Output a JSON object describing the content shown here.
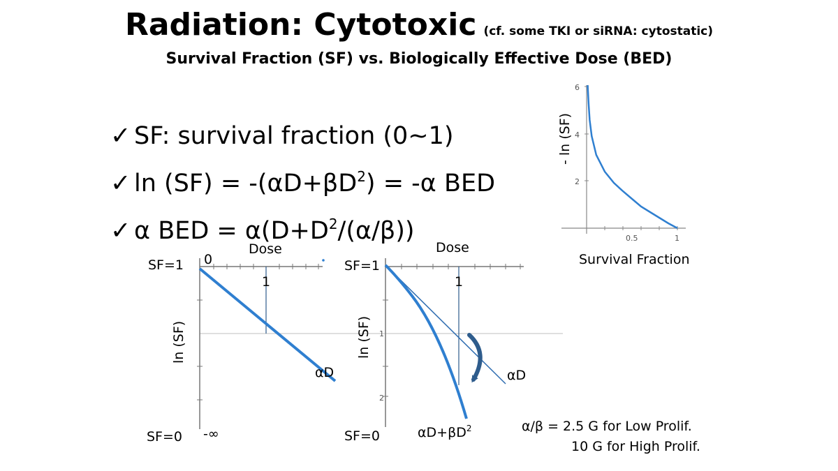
{
  "title": {
    "main": "Radiation: Cytotoxic",
    "note": "(cf. some TKI or siRNA: cytostatic)"
  },
  "subtitle": "Survival Fraction (SF) vs. Biologically Effective Dose (BED)",
  "bullets": [
    {
      "check": "✓",
      "pre": "SF: survival fraction (0~1)",
      "sup": "",
      "post": ""
    },
    {
      "check": "✓",
      "pre": "ln (SF) = -(αD+βD",
      "sup": "2",
      "post": ") = -α BED"
    },
    {
      "check": "✓",
      "pre": "α BED = α(D+D",
      "sup": "2",
      "post": "/(α/β))"
    }
  ],
  "left_plot": {
    "x_label": "Dose",
    "y_label": "ln (SF)",
    "origin_label": "0",
    "x_tick_label": "1",
    "sf1_label": "SF=1",
    "sf0_label": "SF=0",
    "neg_inf_label": "-∞",
    "line_label": "αD"
  },
  "middle_plot": {
    "x_label": "Dose",
    "y_label": "ln (SF)",
    "x_tick_label": "1",
    "y_tick_1": "1",
    "y_tick_2": "2",
    "sf1_label": "SF=1",
    "sf0_label": "SF=0",
    "line_label": "αD",
    "curve_label_pre": "αD+βD",
    "curve_label_sup": "2"
  },
  "right_plot": {
    "y_label": "- ln (SF)",
    "x_label": "Survival Fraction",
    "y_ticks": [
      "2",
      "4",
      "6"
    ],
    "x_ticks": [
      "0.5",
      "1"
    ]
  },
  "ratio_note": {
    "line1": "α/β = 2.5 G for Low Prolif.",
    "line2": "10 G for High Prolif."
  },
  "colors": {
    "curve_blue": "#2f7fd0",
    "dark_blue": "#2e5c8c",
    "axis": "#777777",
    "gridline": "#bfbfbf"
  }
}
